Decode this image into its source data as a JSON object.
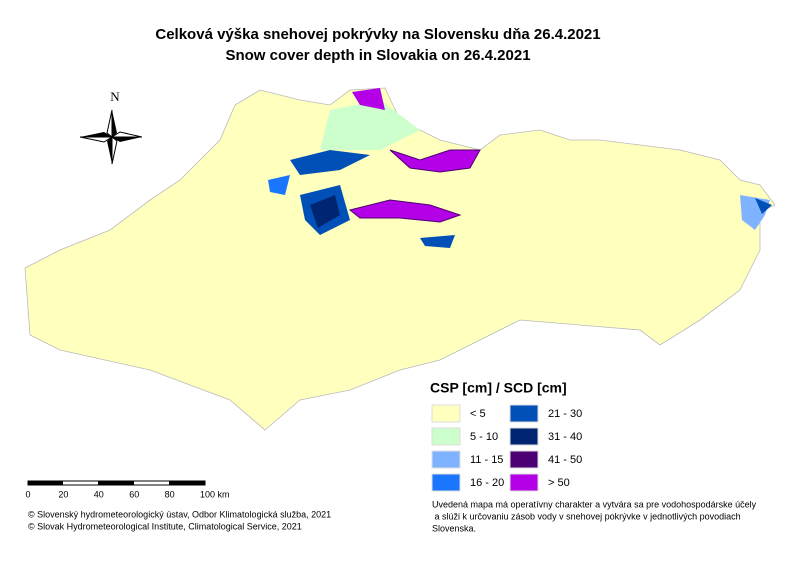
{
  "header": {
    "title_sk": "Celková výška snehovej pokrývky na Slovensku dňa 26.4.2021",
    "title_en": "Snow cover depth in Slovakia on 26.4.2021"
  },
  "north_arrow": {
    "label": "N"
  },
  "legend": {
    "title": "CSP [cm] / SCD [cm]",
    "items": [
      {
        "label": "< 5",
        "color": "#ffffbe"
      },
      {
        "label": "5 - 10",
        "color": "#ccffcc"
      },
      {
        "label": "11 - 15",
        "color": "#7fb2ff"
      },
      {
        "label": "16 - 20",
        "color": "#1a75ff"
      },
      {
        "label": "21 - 30",
        "color": "#0050b8"
      },
      {
        "label": "31 - 40",
        "color": "#002673"
      },
      {
        "label": "41 - 50",
        "color": "#4c0073"
      },
      {
        "label": "> 50",
        "color": "#b400e6"
      }
    ]
  },
  "scale_bar": {
    "labels": [
      "0",
      "20",
      "40",
      "60",
      "80",
      "100 km"
    ]
  },
  "credits": [
    "© Slovenský hydrometeorologický ústav, Odbor Klimatologická služba, 2021",
    "© Slovak Hydrometeorological Institute, Climatological Service, 2021"
  ],
  "note": [
    "Uvedená mapa má operatívny charakter a vytvára sa pre vodohospodárske účely",
    " a slúži k určovaniu zásob vody v snehovej pokrývke v jednotlivých povodiach",
    "Slovenska."
  ]
}
